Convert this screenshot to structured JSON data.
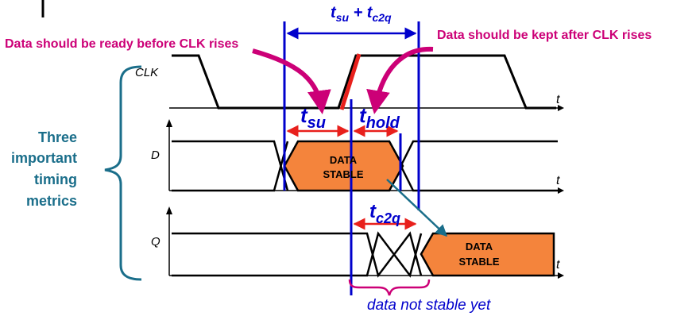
{
  "annotations": {
    "setup_note": "Data should be ready before CLK rises",
    "hold_note": "Data should be kept after CLK rises",
    "top_span_main": "t",
    "top_span_su_sub": "su",
    "top_span_plus": " + t",
    "top_span_c2q_sub": "c2q",
    "side_label": [
      "Three",
      "important",
      "timing",
      "metrics"
    ],
    "bottom_note": "data not stable yet"
  },
  "signals": {
    "clk_label": "CLK",
    "d_label": "D",
    "q_label": "Q",
    "time_axis": "t"
  },
  "timing": {
    "tsu_t": "t",
    "tsu_sub": "su",
    "thold_t": "t",
    "thold_sub": "hold",
    "tc2q_t": "t",
    "tc2q_sub": "c2q"
  },
  "boxes": {
    "d_box_line1": "DATA",
    "d_box_line2": "STABLE",
    "q_box_line1": "DATA",
    "q_box_line2": "STABLE"
  },
  "colors": {
    "magenta": "#cc0077",
    "blue": "#0000cc",
    "teal": "#1a6e8a",
    "orange": "#f4843c",
    "red": "#e8201c",
    "black": "#000000"
  }
}
